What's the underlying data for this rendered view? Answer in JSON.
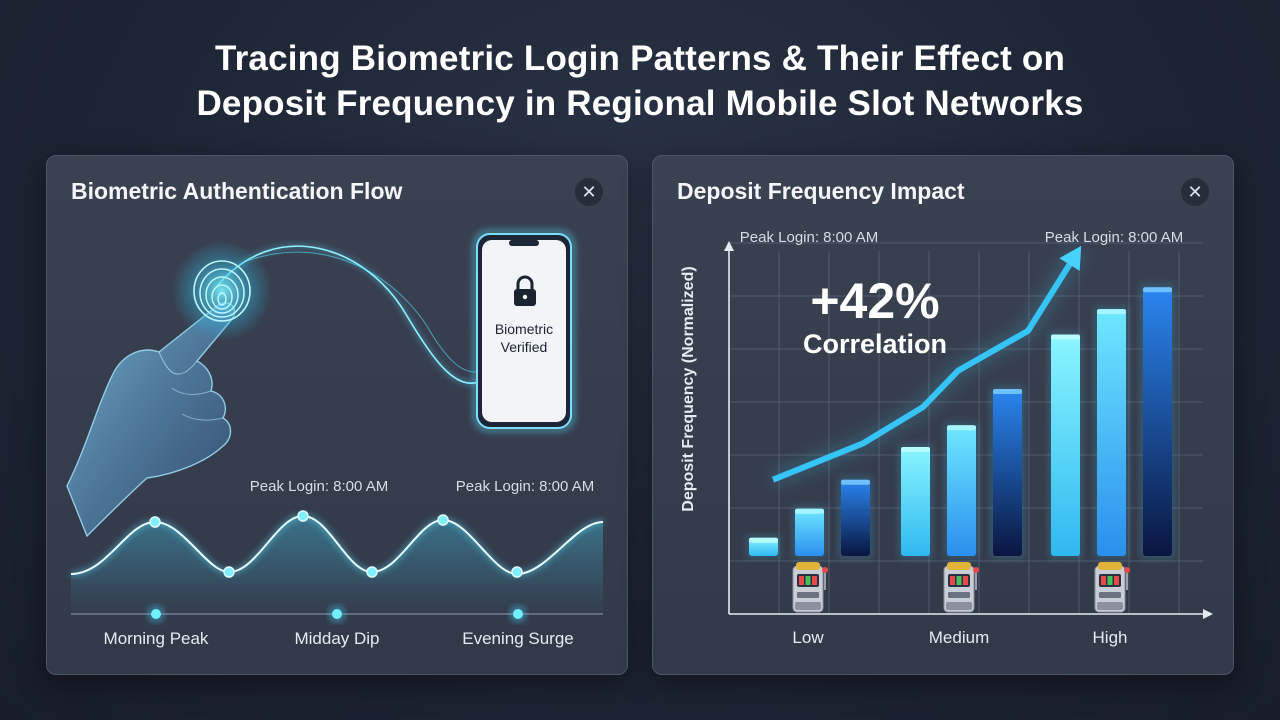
{
  "title": {
    "line1": "Tracing Biometric Login Patterns & Their Effect on",
    "line2": "Deposit Frequency in Regional Mobile Slot Networks"
  },
  "left_panel": {
    "title": "Biometric Authentication Flow",
    "close_label": "✕",
    "phone_text_line1": "Biometric",
    "phone_text_line2": "Verified",
    "icons": [
      "fingerprint-icon",
      "hand-icon",
      "lock-icon",
      "smartphone-icon"
    ],
    "wave_annotations": [
      "Peak Login: 8:00 AM",
      "Peak Login: 8:00 AM"
    ],
    "timeline_labels": [
      "Morning Peak",
      "Midday Dip",
      "Evening Surge"
    ]
  },
  "right_panel": {
    "title": "Deposit Frequency Impact",
    "close_label": "✕",
    "icons": [
      "slot-machine-icon"
    ]
  },
  "chart_data": {
    "type": "bar",
    "title": "",
    "ylabel": "Deposit Frequency (Normalized)",
    "xlabel": "",
    "categories": [
      "Low",
      "Medium",
      "High"
    ],
    "ylim": [
      0,
      1
    ],
    "series": [
      {
        "values": [
          0.21,
          0.46,
          0.77
        ]
      },
      {
        "values": [
          0.29,
          0.52,
          0.84
        ]
      },
      {
        "values": [
          0.37,
          0.62,
          0.9
        ]
      }
    ],
    "trend": [
      0.37,
      0.47,
      0.57,
      0.67,
      0.78,
      1.0
    ],
    "annotation_value": "+42%",
    "annotation_label": "Correlation",
    "peak_annotations": [
      "Peak Login: 8:00 AM",
      "Peak Login: 8:00 AM"
    ],
    "grid": true
  },
  "colors": {
    "cyan": "#5ff0ff",
    "blue": "#1e7ef0",
    "navy": "#0c1a4a",
    "glow": "#3fd6ff"
  }
}
